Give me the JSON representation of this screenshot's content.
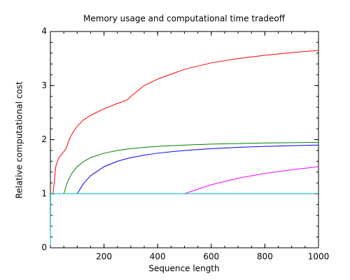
{
  "chart_data": {
    "type": "line",
    "title": "Memory usage and computational time tradeoff",
    "x_label": "Sequence length",
    "y_label": "Relative computational cost",
    "x": [
      0,
      1,
      10,
      20,
      30,
      40,
      50,
      60,
      70,
      80,
      100,
      125,
      150,
      200,
      250,
      285,
      300,
      350,
      400,
      500,
      600,
      700,
      800,
      900,
      1000
    ],
    "series": [
      {
        "color": "#ff0000",
        "values": [
          null,
          null,
          1,
          1.5,
          1.65,
          1.72,
          1.78,
          1.85,
          2.0,
          2.1,
          2.25,
          2.37,
          2.45,
          2.57,
          2.67,
          2.73,
          2.8,
          3.0,
          3.12,
          3.3,
          3.42,
          3.5,
          3.56,
          3.61,
          3.65
        ]
      },
      {
        "color": "#008000",
        "values": [
          null,
          null,
          null,
          null,
          null,
          null,
          1,
          1.167,
          1.286,
          1.375,
          1.5,
          1.6,
          1.667,
          1.75,
          1.8,
          1.825,
          1.833,
          1.857,
          1.875,
          1.9,
          1.917,
          1.929,
          1.938,
          1.944,
          1.95
        ]
      },
      {
        "color": "#0000ff",
        "values": [
          null,
          null,
          null,
          null,
          null,
          null,
          null,
          null,
          null,
          null,
          1,
          1.2,
          1.333,
          1.5,
          1.6,
          1.649,
          1.667,
          1.714,
          1.75,
          1.8,
          1.833,
          1.857,
          1.875,
          1.889,
          1.9
        ]
      },
      {
        "color": "#ff00ff",
        "values": [
          null,
          null,
          null,
          null,
          null,
          null,
          null,
          null,
          null,
          null,
          null,
          null,
          null,
          null,
          null,
          null,
          null,
          null,
          null,
          1,
          1.167,
          1.286,
          1.375,
          1.444,
          1.5
        ]
      },
      {
        "color": "#00c0c0",
        "values": [
          0.05,
          1,
          1,
          1,
          1,
          1,
          1,
          1,
          1,
          1,
          1,
          1,
          1,
          1,
          1,
          1,
          1,
          1,
          1,
          1,
          1,
          1,
          1,
          1,
          1
        ]
      }
    ],
    "xlim": [
      0,
      1000
    ],
    "ylim": [
      0,
      4
    ],
    "xticks": [
      200,
      400,
      600,
      800,
      1000
    ],
    "yticks": [
      0,
      1,
      2,
      3,
      4
    ]
  }
}
